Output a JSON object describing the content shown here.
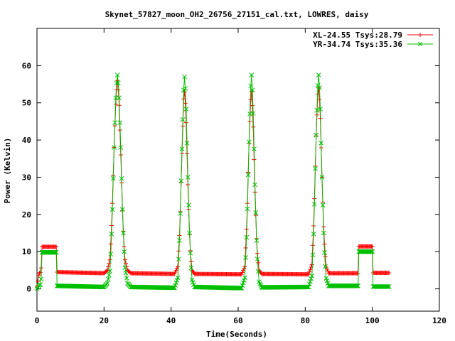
{
  "chart_data": {
    "type": "line",
    "title": "Skynet_57827_moon_OH2_26756_27151_cal.txt, LOWRES, daisy",
    "xlabel": "Time(Seconds)",
    "ylabel": "Power (Kelvin)",
    "xlim": [
      0,
      120
    ],
    "ylim": [
      -6,
      70
    ],
    "xticks": [
      0,
      20,
      40,
      60,
      80,
      100,
      120
    ],
    "yticks": [
      0,
      10,
      20,
      30,
      40,
      50,
      60
    ],
    "grid": false,
    "legend_position": "top-right",
    "sample_step": 0.25,
    "series": [
      {
        "name": "XL-24.55 Tsys:28.79",
        "color": "#ff0000",
        "marker": "plus",
        "points": [
          [
            0.0,
            0.5
          ],
          [
            0.6,
            4.2
          ],
          [
            1.2,
            4.5
          ],
          [
            1.5,
            11.3
          ],
          [
            5.8,
            11.3
          ],
          [
            6.0,
            4.5
          ],
          [
            20.0,
            4.2
          ],
          [
            21.0,
            5.0
          ],
          [
            21.8,
            8.0
          ],
          [
            22.4,
            20.0
          ],
          [
            23.0,
            38.0
          ],
          [
            23.6,
            52.0
          ],
          [
            24.0,
            56.0
          ],
          [
            24.4,
            52.0
          ],
          [
            25.0,
            36.0
          ],
          [
            25.6,
            18.0
          ],
          [
            26.2,
            8.0
          ],
          [
            27.0,
            5.0
          ],
          [
            28.0,
            4.2
          ],
          [
            41.0,
            4.0
          ],
          [
            42.0,
            6.0
          ],
          [
            42.6,
            16.0
          ],
          [
            43.2,
            35.0
          ],
          [
            43.8,
            52.5
          ],
          [
            44.0,
            53.0
          ],
          [
            44.4,
            48.0
          ],
          [
            45.0,
            28.0
          ],
          [
            45.6,
            12.0
          ],
          [
            46.2,
            5.0
          ],
          [
            47.0,
            4.0
          ],
          [
            61.0,
            3.9
          ],
          [
            62.0,
            6.0
          ],
          [
            62.6,
            18.0
          ],
          [
            63.2,
            38.0
          ],
          [
            63.8,
            52.0
          ],
          [
            64.0,
            53.0
          ],
          [
            64.4,
            47.0
          ],
          [
            65.0,
            26.0
          ],
          [
            65.6,
            11.0
          ],
          [
            66.2,
            5.0
          ],
          [
            67.0,
            4.0
          ],
          [
            81.0,
            3.9
          ],
          [
            82.0,
            6.5
          ],
          [
            82.6,
            19.0
          ],
          [
            83.2,
            40.0
          ],
          [
            83.8,
            53.5
          ],
          [
            84.0,
            54.0
          ],
          [
            84.4,
            49.0
          ],
          [
            85.0,
            30.0
          ],
          [
            85.6,
            14.0
          ],
          [
            86.2,
            6.0
          ],
          [
            87.0,
            4.2
          ],
          [
            95.8,
            4.2
          ],
          [
            96.0,
            11.4
          ],
          [
            100.0,
            11.4
          ],
          [
            100.2,
            4.3
          ],
          [
            105.0,
            4.3
          ]
        ]
      },
      {
        "name": "YR-34.74 Tsys:35.36",
        "color": "#00c000",
        "marker": "cross",
        "points": [
          [
            0.0,
            0.0
          ],
          [
            0.6,
            1.0
          ],
          [
            1.2,
            1.2
          ],
          [
            1.5,
            9.8
          ],
          [
            5.8,
            9.8
          ],
          [
            6.0,
            0.8
          ],
          [
            20.0,
            0.5
          ],
          [
            21.0,
            1.5
          ],
          [
            21.8,
            5.0
          ],
          [
            22.4,
            18.0
          ],
          [
            23.0,
            38.0
          ],
          [
            23.6,
            54.0
          ],
          [
            24.0,
            57.5
          ],
          [
            24.4,
            54.0
          ],
          [
            25.0,
            38.0
          ],
          [
            25.6,
            18.0
          ],
          [
            26.2,
            6.0
          ],
          [
            27.0,
            1.5
          ],
          [
            28.0,
            0.5
          ],
          [
            41.0,
            0.3
          ],
          [
            42.0,
            3.0
          ],
          [
            42.6,
            15.0
          ],
          [
            43.2,
            36.0
          ],
          [
            43.8,
            55.0
          ],
          [
            44.0,
            57.0
          ],
          [
            44.4,
            52.0
          ],
          [
            45.0,
            30.0
          ],
          [
            45.6,
            12.0
          ],
          [
            46.2,
            2.5
          ],
          [
            47.0,
            0.5
          ],
          [
            61.0,
            0.2
          ],
          [
            62.0,
            3.0
          ],
          [
            62.6,
            16.0
          ],
          [
            63.2,
            38.0
          ],
          [
            63.8,
            56.0
          ],
          [
            64.0,
            57.5
          ],
          [
            64.4,
            51.0
          ],
          [
            65.0,
            28.0
          ],
          [
            65.6,
            10.0
          ],
          [
            66.2,
            2.0
          ],
          [
            67.0,
            0.4
          ],
          [
            81.0,
            0.5
          ],
          [
            82.0,
            3.5
          ],
          [
            82.6,
            17.0
          ],
          [
            83.2,
            40.0
          ],
          [
            83.8,
            56.0
          ],
          [
            84.0,
            57.5
          ],
          [
            84.4,
            52.0
          ],
          [
            85.0,
            30.0
          ],
          [
            85.6,
            12.0
          ],
          [
            86.2,
            3.0
          ],
          [
            87.0,
            0.8
          ],
          [
            95.8,
            0.8
          ],
          [
            96.0,
            10.0
          ],
          [
            100.0,
            10.0
          ],
          [
            100.2,
            0.6
          ],
          [
            105.0,
            0.6
          ]
        ]
      }
    ]
  }
}
